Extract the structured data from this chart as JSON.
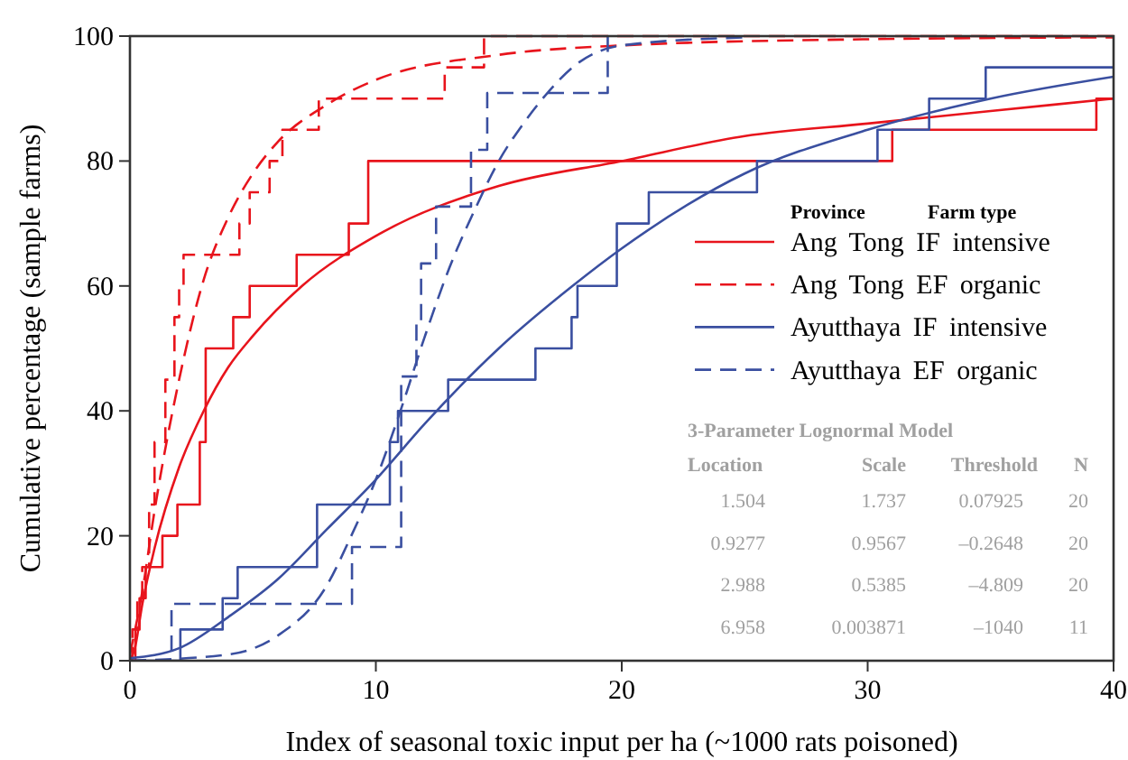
{
  "chart_data": {
    "type": "line",
    "xlabel": "Index of seasonal toxic input per ha (~1000 rats poisoned)",
    "ylabel": "Cumulative percentage (sample farms)",
    "xlim": [
      0,
      40
    ],
    "xticks": [
      0,
      10,
      20,
      30,
      40
    ],
    "ylim": [
      0,
      100
    ],
    "yticks": [
      0,
      20,
      40,
      60,
      80,
      100
    ],
    "grid": false,
    "legend": "right",
    "legend_title": "Province Farm type",
    "series": [
      {
        "type": "step",
        "name": "Ang Tong IF intensive",
        "color": "#e8141c",
        "line_style": "solid",
        "x": [
          0,
          0.22,
          0.39,
          0.64,
          1.32,
          1.93,
          2.84,
          3.08,
          4.2,
          4.87,
          6.78,
          8.9,
          9.69,
          31.0,
          39.3,
          40
        ],
        "values": [
          0,
          5,
          10,
          15,
          20,
          25,
          35,
          50,
          55,
          60,
          65,
          70,
          80,
          85,
          90,
          90
        ]
      },
      {
        "color": "#e8141c",
        "line_style": "solid",
        "x": [
          0,
          0.2,
          0.5,
          1,
          2,
          3,
          4,
          5,
          7,
          10,
          15,
          20,
          25,
          30,
          35,
          40
        ],
        "values": [
          0,
          2,
          9,
          18,
          31,
          40,
          47,
          52,
          60,
          68,
          76,
          80,
          84,
          86,
          88,
          90
        ]
      },
      {
        "type": "step",
        "name": "Ang Tong EF organic",
        "color": "#e8141c",
        "line_style": "dashed",
        "x": [
          0,
          0.1,
          0.3,
          0.5,
          0.78,
          1.0,
          1.44,
          1.81,
          2.0,
          2.18,
          4.45,
          4.87,
          5.68,
          6.2,
          7.68,
          12.8,
          14.4,
          40
        ],
        "values": [
          0,
          5,
          10,
          15,
          25,
          35,
          45,
          55,
          60,
          65,
          70,
          75,
          80,
          85,
          90,
          95,
          100,
          100
        ]
      },
      {
        "color": "#e8141c",
        "line_style": "dashed",
        "x": [
          0,
          0.5,
          1,
          2,
          3,
          4,
          5,
          6,
          8,
          10,
          15,
          20,
          30,
          40
        ],
        "values": [
          1,
          11,
          24,
          45,
          61,
          71,
          78,
          83,
          89,
          93,
          97,
          98.5,
          99.5,
          99.8
        ]
      },
      {
        "type": "step",
        "name": "Ayutthaya IF intensive",
        "color": "#3a4fa0",
        "line_style": "solid",
        "x": [
          0,
          2.05,
          3.77,
          4.38,
          7.61,
          10.57,
          10.9,
          12.94,
          16.49,
          17.96,
          18.2,
          19.8,
          21.1,
          25.5,
          30.4,
          32.5,
          34.8,
          40
        ],
        "values": [
          0,
          5,
          10,
          15,
          25,
          35,
          40,
          45,
          50,
          55,
          60,
          70,
          75,
          80,
          85,
          90,
          95,
          95
        ]
      },
      {
        "color": "#3a4fa0",
        "line_style": "solid",
        "x": [
          0,
          2,
          4,
          6,
          8,
          10,
          12,
          15,
          18,
          20,
          25,
          30,
          35,
          40
        ],
        "values": [
          0.4,
          2,
          7,
          13,
          21,
          29,
          38,
          50,
          60,
          66,
          78,
          85,
          90,
          93.5
        ]
      },
      {
        "type": "step",
        "name": "Ayutthaya EF organic",
        "color": "#3a4fa0",
        "line_style": "dashed",
        "x": [
          0,
          1.69,
          9.03,
          11.03,
          11.65,
          11.84,
          12.45,
          13.87,
          14.53,
          19.43
        ],
        "values": [
          0,
          9.1,
          18.2,
          45.5,
          54.5,
          63.6,
          72.7,
          81.8,
          90.9,
          100
        ]
      },
      {
        "color": "#3a4fa0",
        "line_style": "dashed",
        "x": [
          0,
          4,
          6,
          8,
          9,
          10,
          11,
          12,
          13,
          14,
          15,
          16,
          17,
          18,
          20,
          25
        ],
        "values": [
          0,
          1,
          4,
          12,
          20,
          29,
          40,
          52,
          63,
          72,
          80,
          86,
          91,
          95,
          98.5,
          99.8
        ]
      }
    ],
    "annotations": [
      "3-Parameter Lognormal Model",
      "Location",
      "Scale",
      "Threshold",
      "N",
      "1.504",
      "1.737",
      "0.07925",
      "20",
      "0.9277",
      "0.9567",
      "–0.2648",
      "20",
      "2.988",
      "0.5385",
      "–4.809",
      "20",
      "6.958",
      "0.003871",
      "–1040",
      "11"
    ]
  }
}
